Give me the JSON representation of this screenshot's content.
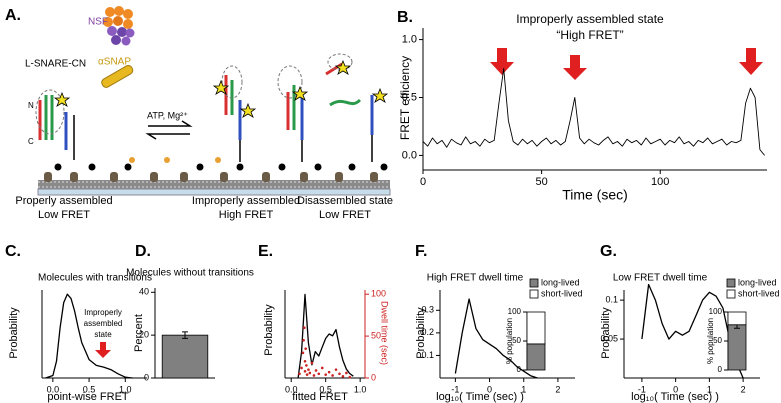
{
  "diagram": {
    "label": "A.",
    "nsf": "NSF",
    "asnap": "αSNAP",
    "construct": "L-SNARE-CN",
    "n_terminus": "N",
    "c_terminus": "C",
    "cofactors": "ATP, Mg²⁺",
    "states": [
      {
        "name": "Properly assembled",
        "fret": "Low FRET"
      },
      {
        "name": "Improperly assembled",
        "fret": "High FRET"
      },
      {
        "name": "Disassembled state",
        "fret": "Low FRET"
      }
    ]
  },
  "chart_data": [
    {
      "type": "line",
      "label": "B.",
      "title": "Improperly assembled state",
      "subtitle": "“High FRET”",
      "xlabel": "Time (sec)",
      "ylabel": "FRET efficiency",
      "x": [
        0,
        2,
        4,
        6,
        8,
        10,
        12,
        14,
        16,
        18,
        20,
        22,
        24,
        26,
        28,
        30,
        32,
        34,
        36,
        38,
        40,
        42,
        44,
        46,
        48,
        50,
        52,
        54,
        56,
        58,
        60,
        62,
        64,
        66,
        68,
        70,
        72,
        74,
        76,
        78,
        80,
        82,
        84,
        86,
        88,
        90,
        92,
        94,
        96,
        98,
        100,
        102,
        104,
        106,
        108,
        110,
        112,
        114,
        116,
        118,
        120,
        122,
        124,
        126,
        128,
        130,
        132,
        134,
        136,
        138,
        140,
        142,
        144
      ],
      "series": [
        {
          "color": "#000000",
          "values": [
            0.12,
            0.08,
            0.15,
            0.1,
            0.13,
            0.07,
            0.14,
            0.11,
            0.09,
            0.16,
            0.1,
            0.12,
            0.08,
            0.14,
            0.11,
            0.13,
            0.45,
            0.75,
            0.3,
            0.12,
            0.09,
            0.14,
            0.1,
            0.13,
            0.08,
            0.12,
            0.15,
            0.1,
            0.13,
            0.09,
            0.12,
            0.3,
            0.5,
            0.15,
            0.1,
            0.14,
            0.11,
            0.09,
            0.13,
            0.16,
            0.1,
            0.12,
            0.08,
            0.14,
            0.11,
            0.13,
            0.09,
            0.15,
            0.1,
            0.12,
            0.14,
            0.09,
            0.13,
            0.11,
            0.16,
            0.1,
            0.12,
            0.08,
            0.13,
            0.11,
            0.15,
            0.1,
            0.12,
            0.14,
            0.09,
            0.12,
            0.11,
            0.13,
            0.45,
            0.58,
            0.5,
            0.05,
            0.0
          ]
        }
      ],
      "xlim": [
        0,
        145
      ],
      "ylim": [
        -0.1,
        1.1
      ],
      "xticks": [
        0,
        50,
        100
      ],
      "yticks": [
        {
          "value": 0,
          "label": "0.0"
        },
        {
          "value": 0.5,
          "label": "0.5"
        },
        {
          "value": 1,
          "label": "1.0"
        }
      ]
    },
    {
      "type": "line",
      "label": "C.",
      "title": "Molecules with transitions",
      "annotation": [
        "Improperly",
        "assembled",
        "state"
      ],
      "xlabel": "point-wise FRET",
      "ylabel": "Probability",
      "x": [
        -0.1,
        0,
        0.05,
        0.1,
        0.15,
        0.2,
        0.25,
        0.3,
        0.35,
        0.4,
        0.5,
        0.6,
        0.7,
        0.8,
        0.9,
        1.0,
        1.1
      ],
      "series": [
        {
          "color": "#000000",
          "values": [
            0,
            0.03,
            0.2,
            0.6,
            0.9,
            1.0,
            0.95,
            0.8,
            0.6,
            0.42,
            0.22,
            0.15,
            0.13,
            0.1,
            0.05,
            0.01,
            0
          ]
        }
      ],
      "xlim": [
        -0.15,
        1.3
      ],
      "ylim": [
        0,
        1.05
      ],
      "xticks": [
        {
          "value": 0,
          "label": "0.0"
        },
        {
          "value": 0.5,
          "label": "0.5"
        },
        {
          "value": 1,
          "label": "1.0"
        }
      ]
    },
    {
      "type": "bar",
      "label": "D.",
      "title": "Molecules without transitions",
      "ylabel": "Percent",
      "categories": [
        null
      ],
      "values": [
        20
      ],
      "errors": [
        1.5
      ],
      "color": "#808080",
      "ylim": [
        0,
        42
      ],
      "yticks": [
        0,
        20,
        40
      ]
    },
    {
      "type": "line",
      "label": "E.",
      "xlabel": "fitted FRET",
      "ylabel": "Probability",
      "y2label": "Dwell time (sec)",
      "x": [
        0.1,
        0.15,
        0.2,
        0.25,
        0.3,
        0.35,
        0.4,
        0.45,
        0.5,
        0.55,
        0.6,
        0.65,
        0.7,
        0.75,
        0.8,
        0.85,
        0.9
      ],
      "series": [
        {
          "color": "#000000",
          "values": [
            0,
            0.3,
            0.95,
            0.4,
            0.15,
            0.3,
            0.25,
            0.35,
            0.45,
            0.5,
            0.48,
            0.55,
            0.35,
            0.2,
            0.1,
            0.05,
            0.02
          ]
        },
        {
          "type": "scatter",
          "axis": "y2",
          "color": "#cc2222",
          "x": [
            0.12,
            0.15,
            0.17,
            0.18,
            0.19,
            0.2,
            0.2,
            0.21,
            0.22,
            0.23,
            0.25,
            0.27,
            0.3,
            0.33,
            0.36,
            0.4,
            0.45,
            0.5,
            0.55,
            0.6,
            0.65,
            0.7,
            0.75,
            0.8,
            0.85
          ],
          "values": [
            5,
            12,
            30,
            45,
            60,
            20,
            8,
            35,
            15,
            4,
            10,
            6,
            18,
            3,
            9,
            5,
            12,
            4,
            7,
            3,
            10,
            5,
            2,
            6,
            1
          ]
        }
      ],
      "xlim": [
        -0.09,
        1.07
      ],
      "ylim": [
        0,
        1
      ],
      "y2lim": [
        0,
        105
      ],
      "xticks": [
        {
          "value": 0,
          "label": "0.0"
        },
        {
          "value": 0.5,
          "label": "0.5"
        },
        {
          "value": 1,
          "label": "1.0"
        }
      ],
      "y2ticks": [
        0,
        50,
        100
      ],
      "y2color": "#cc2222"
    },
    {
      "type": "line",
      "label": "F.",
      "title": "High FRET dwell time",
      "xlabel": "log₁₀( Time (sec) )",
      "ylabel": "Probability",
      "x": [
        -1,
        -0.8,
        -0.6,
        -0.4,
        -0.2,
        0,
        0.2,
        0.4,
        0.6,
        0.8,
        1,
        1.2,
        1.4
      ],
      "series": [
        {
          "color": "#000000",
          "values": [
            0.02,
            0.2,
            0.35,
            0.22,
            0.17,
            0.15,
            0.13,
            0.1,
            0.08,
            0.05,
            0.03,
            0.01,
            0
          ]
        }
      ],
      "xlim": [
        -1.45,
        2.5
      ],
      "ylim": [
        0,
        0.39
      ],
      "xticks": [
        -1,
        0,
        1,
        2
      ],
      "yticks": [
        0.1,
        0.2,
        0.3
      ]
    },
    {
      "type": "bar",
      "stacked": true,
      "ylabel": "% population",
      "categories": [
        null
      ],
      "series": [
        {
          "name": "long-lived",
          "color": "#808080",
          "values": [
            45
          ]
        },
        {
          "name": "short-lived",
          "color": "#ffffff",
          "values": [
            55
          ]
        }
      ],
      "ylim": [
        0,
        100
      ],
      "yticks": [
        0,
        50,
        100
      ]
    },
    {
      "type": "line",
      "label": "G.",
      "title": "Low FRET dwell time",
      "xlabel": "log₁₀( Time (sec) )",
      "ylabel": "Probability",
      "x": [
        -1,
        -0.8,
        -0.6,
        -0.4,
        -0.2,
        0,
        0.2,
        0.4,
        0.6,
        0.8,
        1,
        1.2,
        1.4,
        1.6,
        1.8,
        2
      ],
      "series": [
        {
          "color": "#000000",
          "values": [
            0.05,
            0.12,
            0.1,
            0.07,
            0.05,
            0.06,
            0.055,
            0.06,
            0.08,
            0.1,
            0.11,
            0.105,
            0.09,
            0.05,
            0.02,
            0
          ]
        }
      ],
      "xlim": [
        -1.53,
        2.5
      ],
      "ylim": [
        0,
        0.113
      ],
      "xticks": [
        -1,
        0,
        1,
        2
      ],
      "yticks": [
        0.05,
        0.1
      ]
    },
    {
      "type": "bar",
      "stacked": true,
      "ylabel": "% population",
      "categories": [
        null
      ],
      "series": [
        {
          "name": "long-lived",
          "color": "#808080",
          "values": [
            78
          ],
          "errors": [
            6
          ]
        },
        {
          "name": "short-lived",
          "color": "#ffffff",
          "values": [
            22
          ]
        }
      ],
      "ylim": [
        0,
        100
      ],
      "yticks": [
        0,
        50,
        100
      ]
    }
  ]
}
